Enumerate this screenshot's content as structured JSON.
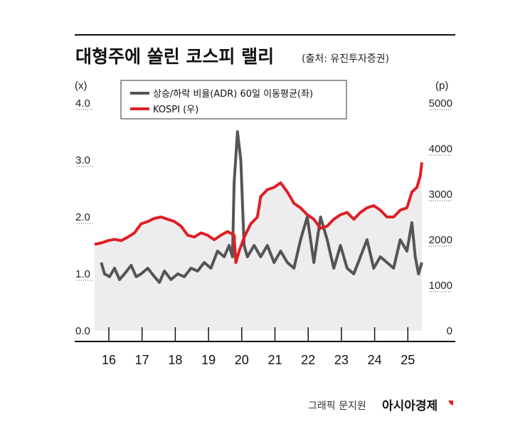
{
  "title": "대형주에 쏠린 코스피 랠리",
  "source": "(출처: 유진투자증권)",
  "credit": "그래픽 문지원",
  "brand": "아시아경제",
  "colors": {
    "adr": "#555555",
    "kospi": "#e01e26",
    "area": "#ededed",
    "text": "#111111"
  },
  "chart_data": {
    "type": "line",
    "left_axis": {
      "unit": "(x)",
      "ticks": [
        "0.0",
        "1.0",
        "2.0",
        "3.0",
        "4.0"
      ],
      "ylim": [
        0,
        4
      ]
    },
    "right_axis": {
      "unit": "(p)",
      "ticks": [
        "0",
        "1000",
        "2000",
        "3000",
        "4000",
        "5000"
      ],
      "ylim": [
        0,
        5000
      ]
    },
    "x_ticks": [
      "16",
      "17",
      "18",
      "19",
      "20",
      "21",
      "22",
      "23",
      "24",
      "25"
    ],
    "xlim": [
      2016,
      2026
    ],
    "series": [
      {
        "name": "상승/하락 비율(ADR) 60일 이동평균(좌)",
        "axis": "left",
        "x": [
          2016.2,
          2016.3,
          2016.45,
          2016.6,
          2016.75,
          2016.9,
          2017.1,
          2017.25,
          2017.4,
          2017.6,
          2017.8,
          2017.95,
          2018.1,
          2018.3,
          2018.5,
          2018.7,
          2018.9,
          2019.1,
          2019.3,
          2019.5,
          2019.7,
          2019.9,
          2020.05,
          2020.15,
          2020.2,
          2020.3,
          2020.4,
          2020.5,
          2020.6,
          2020.7,
          2020.8,
          2021.0,
          2021.2,
          2021.4,
          2021.6,
          2021.8,
          2022.0,
          2022.2,
          2022.4,
          2022.6,
          2022.8,
          2023.0,
          2023.2,
          2023.4,
          2023.6,
          2023.8,
          2024.0,
          2024.2,
          2024.4,
          2024.6,
          2024.8,
          2025.0,
          2025.2,
          2025.4,
          2025.55,
          2025.65,
          2025.75,
          2025.85
        ],
        "y": [
          1.2,
          1.0,
          0.95,
          1.1,
          0.9,
          1.0,
          1.15,
          0.95,
          1.0,
          1.1,
          0.95,
          0.85,
          1.05,
          0.9,
          1.0,
          0.95,
          1.1,
          1.05,
          1.2,
          1.1,
          1.4,
          1.3,
          1.5,
          1.3,
          2.6,
          3.5,
          3.0,
          1.5,
          1.3,
          1.4,
          1.5,
          1.3,
          1.5,
          1.2,
          1.4,
          1.2,
          1.1,
          1.6,
          2.0,
          1.2,
          2.0,
          1.6,
          1.1,
          1.5,
          1.1,
          1.0,
          1.3,
          1.6,
          1.1,
          1.3,
          1.2,
          1.1,
          1.6,
          1.4,
          1.9,
          1.3,
          1.0,
          1.2
        ]
      },
      {
        "name": "KOSPI (우)",
        "axis": "right",
        "x": [
          2016.0,
          2016.2,
          2016.4,
          2016.6,
          2016.8,
          2017.0,
          2017.2,
          2017.4,
          2017.6,
          2017.8,
          2018.0,
          2018.2,
          2018.4,
          2018.6,
          2018.8,
          2019.0,
          2019.2,
          2019.4,
          2019.6,
          2019.8,
          2020.0,
          2020.2,
          2020.25,
          2020.35,
          2020.5,
          2020.7,
          2020.9,
          2021.0,
          2021.2,
          2021.4,
          2021.6,
          2021.8,
          2022.0,
          2022.2,
          2022.4,
          2022.6,
          2022.8,
          2023.0,
          2023.2,
          2023.4,
          2023.6,
          2023.8,
          2024.0,
          2024.2,
          2024.4,
          2024.6,
          2024.8,
          2025.0,
          2025.2,
          2025.4,
          2025.55,
          2025.7,
          2025.8,
          2025.85
        ],
        "y": [
          1900,
          1930,
          1980,
          2010,
          1980,
          2060,
          2150,
          2350,
          2400,
          2470,
          2500,
          2450,
          2400,
          2300,
          2100,
          2060,
          2150,
          2100,
          2000,
          2100,
          2180,
          2100,
          1500,
          1750,
          2050,
          2350,
          2500,
          2950,
          3100,
          3150,
          3250,
          3050,
          2800,
          2700,
          2550,
          2450,
          2250,
          2300,
          2450,
          2550,
          2600,
          2450,
          2600,
          2700,
          2750,
          2650,
          2500,
          2500,
          2650,
          2700,
          3050,
          3150,
          3400,
          3700
        ]
      }
    ]
  }
}
